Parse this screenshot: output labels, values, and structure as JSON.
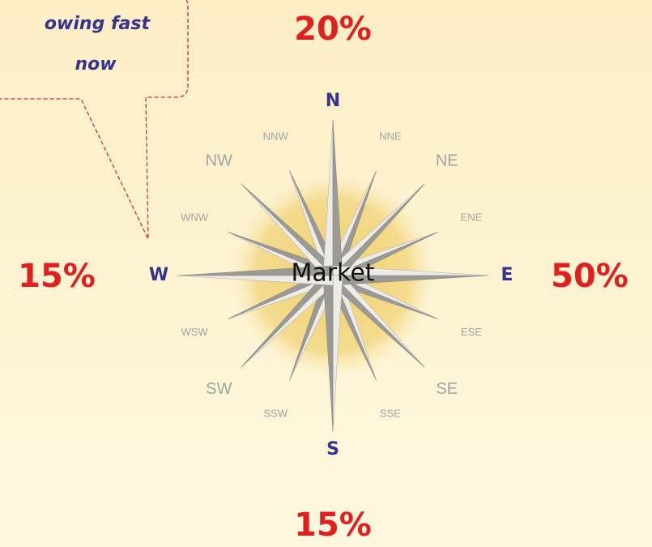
{
  "callout": {
    "lines": [
      "owing fast",
      "now"
    ]
  },
  "center": "Market",
  "directions": [
    "N",
    "NNE",
    "NE",
    "ENE",
    "E",
    "ESE",
    "SE",
    "SSE",
    "S",
    "SSW",
    "SW",
    "WSW",
    "W",
    "WNW",
    "NW",
    "NNW"
  ],
  "shares": {
    "north": "20%",
    "east": "50%",
    "south": "15%",
    "west": "15%"
  }
}
